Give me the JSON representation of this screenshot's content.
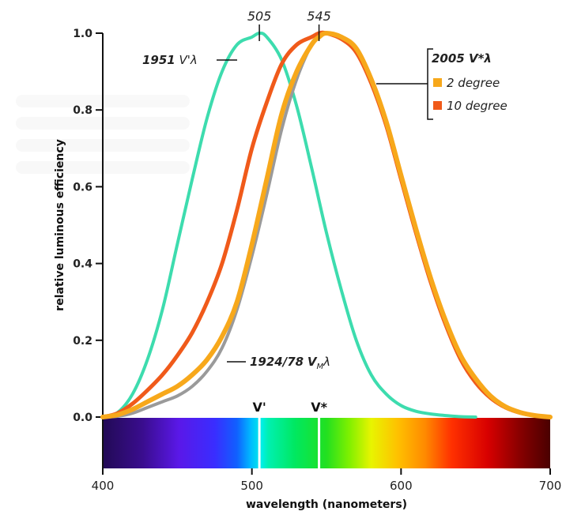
{
  "chart_data": {
    "type": "line",
    "xlabel": "wavelength (nanometers)",
    "ylabel": "relative luminous efficiency",
    "xlim": [
      400,
      700
    ],
    "ylim": [
      0,
      1.0
    ],
    "x_ticks": [
      "400",
      "500",
      "600",
      "700"
    ],
    "y_ticks": [
      "0.0",
      "0.2",
      "0.4",
      "0.6",
      "0.8",
      "1.0"
    ],
    "grid": false,
    "series": [
      {
        "name": "1951 V'λ",
        "color": "#3ddcae",
        "x": [
          400,
          410,
          420,
          430,
          440,
          450,
          460,
          470,
          480,
          490,
          500,
          505,
          510,
          520,
          530,
          540,
          550,
          560,
          570,
          580,
          590,
          600,
          610,
          620,
          630,
          640,
          650
        ],
        "values": [
          0.0,
          0.012,
          0.06,
          0.15,
          0.28,
          0.45,
          0.62,
          0.78,
          0.9,
          0.97,
          0.99,
          1.0,
          0.99,
          0.93,
          0.81,
          0.65,
          0.48,
          0.33,
          0.2,
          0.11,
          0.06,
          0.03,
          0.015,
          0.008,
          0.004,
          0.001,
          0.0
        ]
      },
      {
        "name": "1924/78 V_Mλ",
        "color": "#9a9a9a",
        "x": [
          400,
          410,
          420,
          430,
          440,
          450,
          460,
          470,
          480,
          490,
          500,
          510,
          520,
          530,
          540,
          545,
          550,
          560,
          570,
          580,
          590,
          600,
          610,
          620,
          630,
          640,
          650,
          660,
          670,
          680,
          690,
          700
        ],
        "values": [
          0.0,
          0.002,
          0.01,
          0.025,
          0.04,
          0.055,
          0.08,
          0.12,
          0.18,
          0.28,
          0.42,
          0.58,
          0.75,
          0.88,
          0.97,
          0.99,
          1.0,
          0.99,
          0.95,
          0.87,
          0.76,
          0.62,
          0.48,
          0.35,
          0.24,
          0.15,
          0.09,
          0.05,
          0.025,
          0.01,
          0.004,
          0.0
        ]
      },
      {
        "name": "2 degree",
        "color": "#f7a81b",
        "x": [
          400,
          410,
          420,
          430,
          440,
          450,
          460,
          470,
          480,
          490,
          500,
          510,
          520,
          530,
          540,
          545,
          550,
          560,
          570,
          580,
          590,
          600,
          610,
          620,
          630,
          640,
          650,
          660,
          670,
          680,
          690,
          700
        ],
        "values": [
          0.0,
          0.006,
          0.02,
          0.04,
          0.06,
          0.08,
          0.11,
          0.15,
          0.21,
          0.3,
          0.45,
          0.62,
          0.79,
          0.9,
          0.97,
          0.99,
          1.0,
          0.99,
          0.96,
          0.88,
          0.77,
          0.63,
          0.49,
          0.36,
          0.25,
          0.16,
          0.1,
          0.055,
          0.027,
          0.012,
          0.004,
          0.0
        ]
      },
      {
        "name": "10 degree",
        "color": "#f05a1a",
        "x": [
          400,
          410,
          420,
          430,
          440,
          450,
          460,
          470,
          480,
          490,
          500,
          510,
          520,
          530,
          540,
          545,
          550,
          560,
          570,
          580,
          590,
          600,
          610,
          620,
          630,
          640,
          650,
          660,
          670,
          680,
          690,
          700
        ],
        "values": [
          0.0,
          0.01,
          0.035,
          0.07,
          0.11,
          0.16,
          0.22,
          0.3,
          0.4,
          0.54,
          0.7,
          0.82,
          0.92,
          0.97,
          0.99,
          1.0,
          1.0,
          0.985,
          0.95,
          0.87,
          0.76,
          0.62,
          0.48,
          0.35,
          0.24,
          0.15,
          0.09,
          0.05,
          0.025,
          0.011,
          0.004,
          0.0
        ]
      }
    ],
    "peaks": [
      {
        "label": "505",
        "x": 505
      },
      {
        "label": "545",
        "x": 545
      }
    ],
    "spectrum_markers": [
      {
        "label": "V'",
        "x": 505
      },
      {
        "label": "V*",
        "x": 545
      }
    ],
    "annotations": {
      "scotopic": {
        "year": "1951",
        "symbol": "V'λ"
      },
      "judd": {
        "year": "1924/78",
        "symbol": "V",
        "subscript": "M",
        "suffix": "λ"
      },
      "legend_title": "2005 V*λ"
    }
  }
}
